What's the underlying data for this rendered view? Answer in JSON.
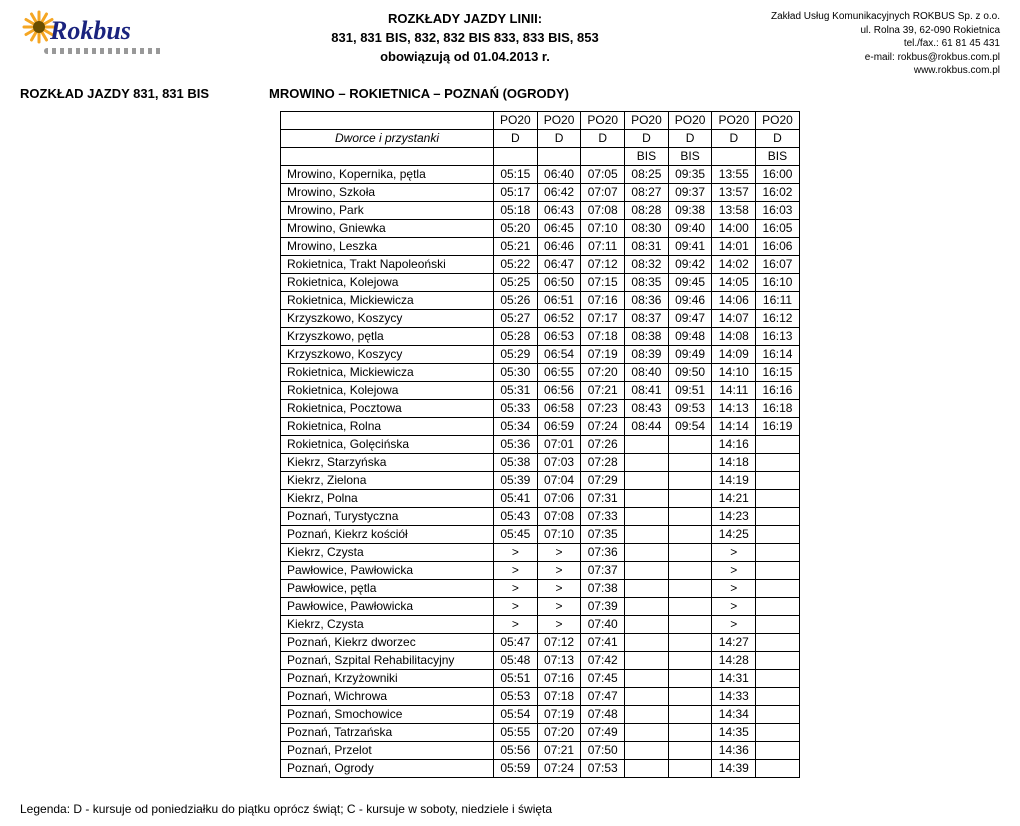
{
  "header": {
    "title1": "ROZKŁADY JAZDY LINII:",
    "title2": "831, 831 BIS, 832, 832 BIS 833, 833 BIS, 853",
    "title3": "obowiązują od 01.04.2013 r."
  },
  "company": {
    "l1": "Zakład Usług Komunikacyjnych ROKBUS Sp. z o.o.",
    "l2": "ul. Rolna 39, 62-090 Rokietnica",
    "l3": "tel./fax.:  61 81 45 431",
    "l4": "e-mail: rokbus@rokbus.com.pl",
    "l5": "www.rokbus.com.pl"
  },
  "subheader": {
    "left": "ROZKŁAD JAZDY 831, 831 BIS",
    "right": "MROWINO – ROKIETNICA – POZNAŃ (OGRODY)"
  },
  "table": {
    "stops_header": "Dworce i przystanki",
    "col_codes": [
      "PO20",
      "PO20",
      "PO20",
      "PO20",
      "PO20",
      "PO20",
      "PO20"
    ],
    "col_days": [
      "D",
      "D",
      "D",
      "D",
      "D",
      "D",
      "D"
    ],
    "col_bis": [
      "",
      "",
      "",
      "BIS",
      "BIS",
      "",
      "BIS"
    ],
    "rows": [
      {
        "stop": "Mrowino, Kopernika, pętla",
        "t": [
          "05:15",
          "06:40",
          "07:05",
          "08:25",
          "09:35",
          "13:55",
          "16:00"
        ]
      },
      {
        "stop": "Mrowino, Szkoła",
        "t": [
          "05:17",
          "06:42",
          "07:07",
          "08:27",
          "09:37",
          "13:57",
          "16:02"
        ]
      },
      {
        "stop": "Mrowino, Park",
        "t": [
          "05:18",
          "06:43",
          "07:08",
          "08:28",
          "09:38",
          "13:58",
          "16:03"
        ]
      },
      {
        "stop": "Mrowino, Gniewka",
        "t": [
          "05:20",
          "06:45",
          "07:10",
          "08:30",
          "09:40",
          "14:00",
          "16:05"
        ]
      },
      {
        "stop": "Mrowino, Leszka",
        "t": [
          "05:21",
          "06:46",
          "07:11",
          "08:31",
          "09:41",
          "14:01",
          "16:06"
        ]
      },
      {
        "stop": "Rokietnica, Trakt Napoleoński",
        "t": [
          "05:22",
          "06:47",
          "07:12",
          "08:32",
          "09:42",
          "14:02",
          "16:07"
        ]
      },
      {
        "stop": "Rokietnica, Kolejowa",
        "t": [
          "05:25",
          "06:50",
          "07:15",
          "08:35",
          "09:45",
          "14:05",
          "16:10"
        ]
      },
      {
        "stop": "Rokietnica, Mickiewicza",
        "t": [
          "05:26",
          "06:51",
          "07:16",
          "08:36",
          "09:46",
          "14:06",
          "16:11"
        ]
      },
      {
        "stop": "Krzyszkowo, Koszycy",
        "t": [
          "05:27",
          "06:52",
          "07:17",
          "08:37",
          "09:47",
          "14:07",
          "16:12"
        ]
      },
      {
        "stop": "Krzyszkowo, pętla",
        "t": [
          "05:28",
          "06:53",
          "07:18",
          "08:38",
          "09:48",
          "14:08",
          "16:13"
        ]
      },
      {
        "stop": "Krzyszkowo, Koszycy",
        "t": [
          "05:29",
          "06:54",
          "07:19",
          "08:39",
          "09:49",
          "14:09",
          "16:14"
        ]
      },
      {
        "stop": "Rokietnica, Mickiewicza",
        "t": [
          "05:30",
          "06:55",
          "07:20",
          "08:40",
          "09:50",
          "14:10",
          "16:15"
        ]
      },
      {
        "stop": "Rokietnica, Kolejowa",
        "t": [
          "05:31",
          "06:56",
          "07:21",
          "08:41",
          "09:51",
          "14:11",
          "16:16"
        ]
      },
      {
        "stop": "Rokietnica, Pocztowa",
        "t": [
          "05:33",
          "06:58",
          "07:23",
          "08:43",
          "09:53",
          "14:13",
          "16:18"
        ]
      },
      {
        "stop": "Rokietnica, Rolna",
        "t": [
          "05:34",
          "06:59",
          "07:24",
          "08:44",
          "09:54",
          "14:14",
          "16:19"
        ]
      },
      {
        "stop": "Rokietnica, Golęcińska",
        "t": [
          "05:36",
          "07:01",
          "07:26",
          "",
          "",
          "14:16",
          ""
        ]
      },
      {
        "stop": "Kiekrz, Starzyńska",
        "t": [
          "05:38",
          "07:03",
          "07:28",
          "",
          "",
          "14:18",
          ""
        ]
      },
      {
        "stop": "Kiekrz, Zielona",
        "t": [
          "05:39",
          "07:04",
          "07:29",
          "",
          "",
          "14:19",
          ""
        ]
      },
      {
        "stop": "Kiekrz, Polna",
        "t": [
          "05:41",
          "07:06",
          "07:31",
          "",
          "",
          "14:21",
          ""
        ]
      },
      {
        "stop": "Poznań, Turystyczna",
        "t": [
          "05:43",
          "07:08",
          "07:33",
          "",
          "",
          "14:23",
          ""
        ]
      },
      {
        "stop": "Poznań, Kiekrz kościół",
        "t": [
          "05:45",
          "07:10",
          "07:35",
          "",
          "",
          "14:25",
          ""
        ]
      },
      {
        "stop": "Kiekrz, Czysta",
        "t": [
          ">",
          ">",
          "07:36",
          "",
          "",
          ">",
          ""
        ]
      },
      {
        "stop": "Pawłowice, Pawłowicka",
        "t": [
          ">",
          ">",
          "07:37",
          "",
          "",
          ">",
          ""
        ]
      },
      {
        "stop": "Pawłowice, pętla",
        "t": [
          ">",
          ">",
          "07:38",
          "",
          "",
          ">",
          ""
        ]
      },
      {
        "stop": "Pawłowice, Pawłowicka",
        "t": [
          ">",
          ">",
          "07:39",
          "",
          "",
          ">",
          ""
        ]
      },
      {
        "stop": "Kiekrz, Czysta",
        "t": [
          ">",
          ">",
          "07:40",
          "",
          "",
          ">",
          ""
        ]
      },
      {
        "stop": "Poznań, Kiekrz dworzec",
        "t": [
          "05:47",
          "07:12",
          "07:41",
          "",
          "",
          "14:27",
          ""
        ]
      },
      {
        "stop": "Poznań, Szpital Rehabilitacyjny",
        "t": [
          "05:48",
          "07:13",
          "07:42",
          "",
          "",
          "14:28",
          ""
        ]
      },
      {
        "stop": "Poznań, Krzyżowniki",
        "t": [
          "05:51",
          "07:16",
          "07:45",
          "",
          "",
          "14:31",
          ""
        ]
      },
      {
        "stop": "Poznań, Wichrowa",
        "t": [
          "05:53",
          "07:18",
          "07:47",
          "",
          "",
          "14:33",
          ""
        ]
      },
      {
        "stop": "Poznań, Smochowice",
        "t": [
          "05:54",
          "07:19",
          "07:48",
          "",
          "",
          "14:34",
          ""
        ]
      },
      {
        "stop": "Poznań, Tatrzańska",
        "t": [
          "05:55",
          "07:20",
          "07:49",
          "",
          "",
          "14:35",
          ""
        ]
      },
      {
        "stop": "Poznań, Przelot",
        "t": [
          "05:56",
          "07:21",
          "07:50",
          "",
          "",
          "14:36",
          ""
        ]
      },
      {
        "stop": "Poznań, Ogrody",
        "t": [
          "05:59",
          "07:24",
          "07:53",
          "",
          "",
          "14:39",
          ""
        ]
      }
    ]
  },
  "legend": "Legenda:  D - kursuje od poniedziałku do piątku oprócz świąt; C - kursuje w soboty, niedziele i święta",
  "logo": {
    "text": "Rokbus",
    "sun_color_outer": "#f5a623",
    "sun_color_inner": "#6b4e00"
  }
}
